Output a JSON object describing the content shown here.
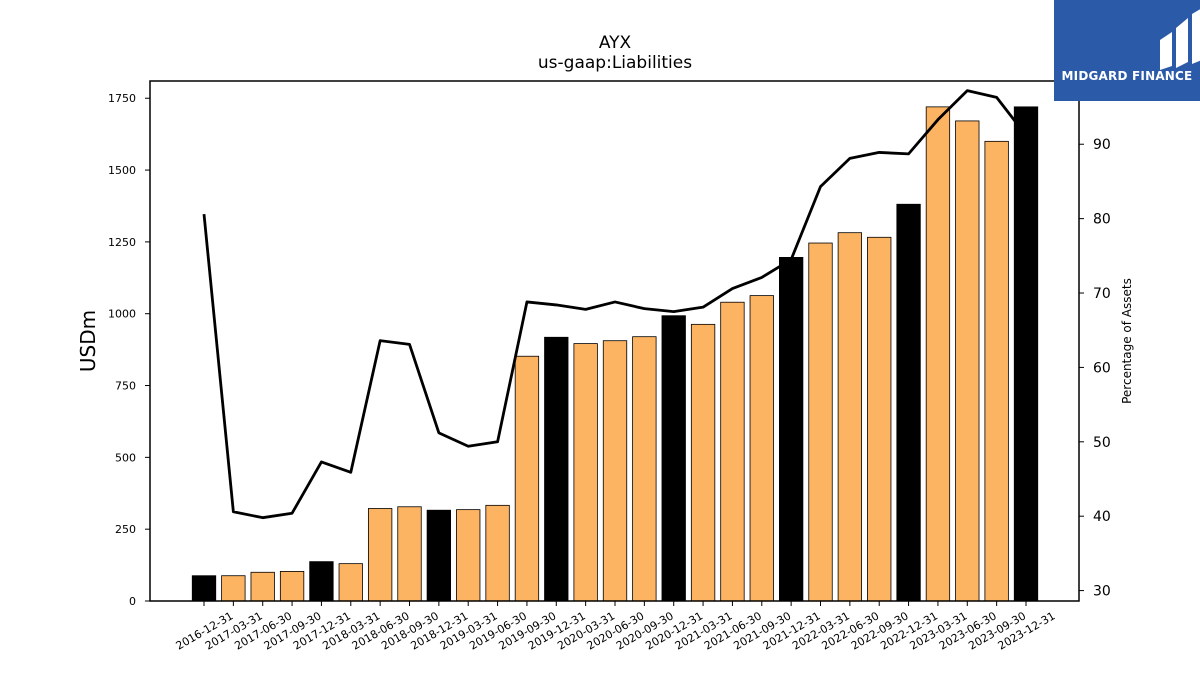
{
  "chart_data": {
    "type": "bar",
    "title": "AYX",
    "subtitle": "us-gaap:Liabilities",
    "ylabel": "USDm",
    "y2label": "Percentage of Assets",
    "ylim": [
      0,
      1810
    ],
    "y2lim": [
      28.6,
      98.5
    ],
    "yticks": [
      0,
      250,
      500,
      750,
      1000,
      1250,
      1500,
      1750
    ],
    "y2ticks": [
      30,
      40,
      50,
      60,
      70,
      80,
      90
    ],
    "categories": [
      "2016-12-31",
      "2017-03-31",
      "2017-06-30",
      "2017-09-30",
      "2017-12-31",
      "2018-03-31",
      "2018-06-30",
      "2018-09-30",
      "2018-12-31",
      "2019-03-31",
      "2019-06-30",
      "2019-09-30",
      "2019-12-31",
      "2020-03-31",
      "2020-06-30",
      "2020-09-30",
      "2020-12-31",
      "2021-03-31",
      "2021-06-30",
      "2021-09-30",
      "2021-12-31",
      "2022-03-31",
      "2022-06-30",
      "2022-09-30",
      "2022-12-31",
      "2023-03-31",
      "2023-06-30",
      "2023-09-30",
      "2023-12-31"
    ],
    "series": [
      {
        "type": "bar",
        "axis": "left",
        "values": [
          88,
          88,
          100,
          103,
          137,
          130,
          322,
          328,
          316,
          318,
          333,
          852,
          918,
          896,
          906,
          920,
          993,
          963,
          1040,
          1063,
          1196,
          1246,
          1282,
          1266,
          1381,
          1720,
          1671,
          1600,
          1720
        ],
        "highlight_color": "#000000",
        "color": "#fdb462",
        "highlight_indices": [
          0,
          4,
          8,
          12,
          16,
          20,
          24,
          28
        ]
      },
      {
        "type": "line",
        "axis": "right",
        "color": "#000000",
        "values": [
          80.6,
          40.6,
          39.8,
          40.4,
          47.3,
          45.9,
          63.6,
          63.1,
          51.2,
          49.4,
          50.0,
          68.8,
          68.4,
          67.8,
          68.8,
          67.9,
          67.5,
          68.1,
          70.6,
          72.1,
          74.5,
          84.3,
          88.1,
          88.9,
          88.7,
          93.3,
          97.2,
          96.3,
          91.2
        ]
      }
    ],
    "grid": false,
    "legend": "none"
  },
  "logo": {
    "text": "MIDGARD FINANCE",
    "background": "#2b5aa8"
  }
}
